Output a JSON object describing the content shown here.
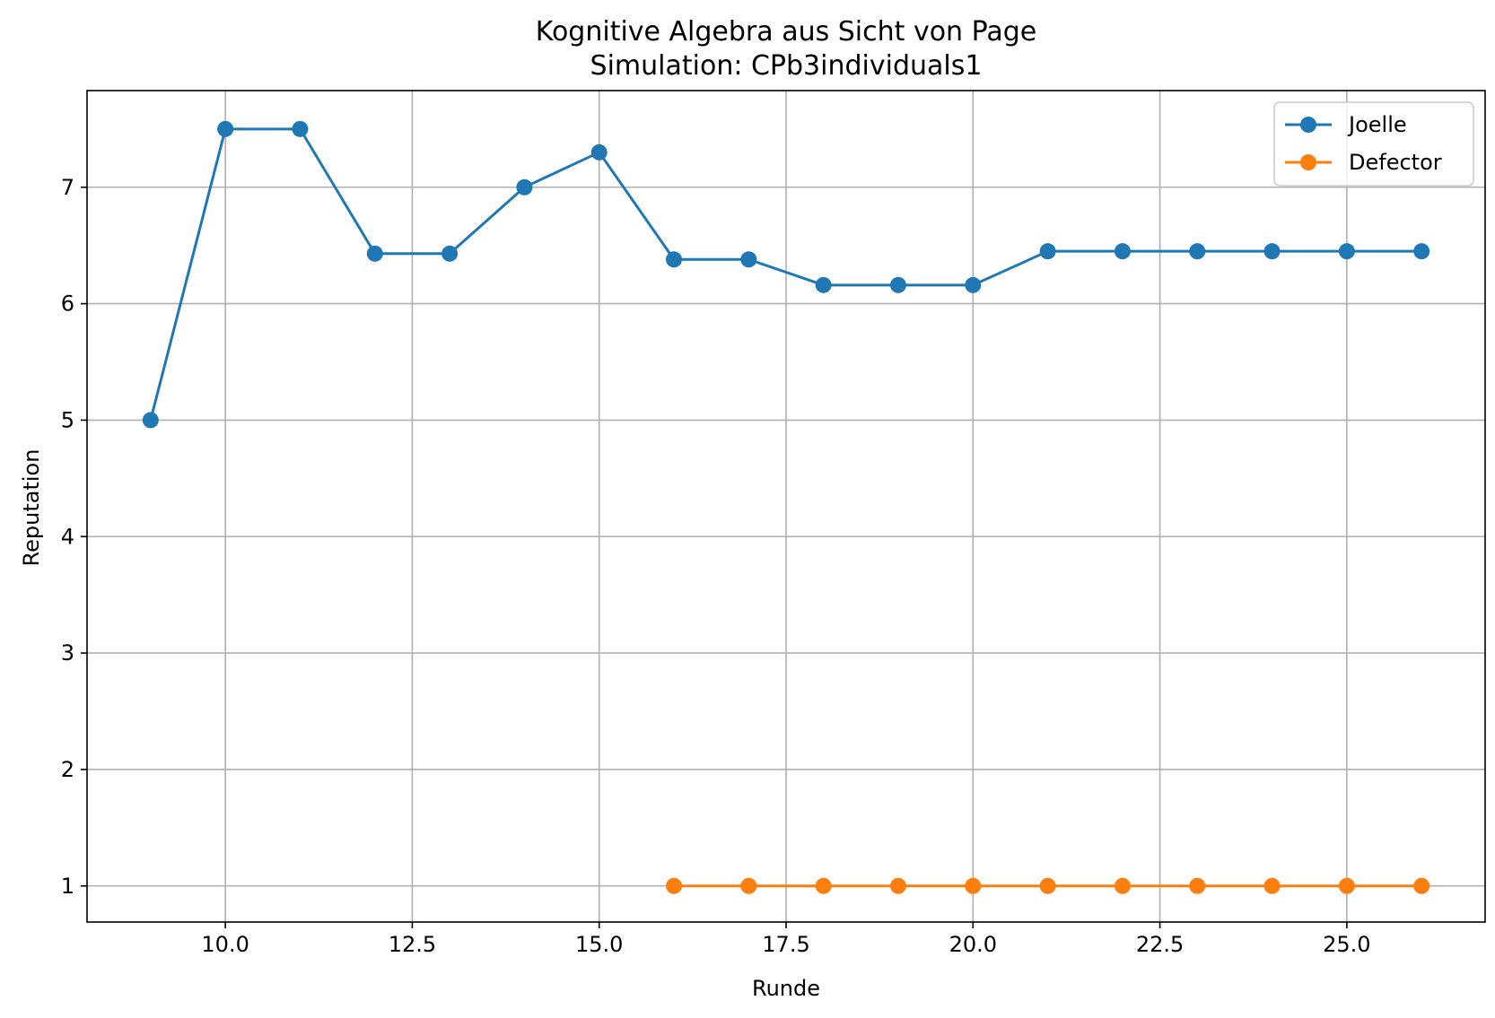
{
  "chart_data": {
    "type": "line",
    "title": "Kognitive Algebra aus Sicht von Page",
    "subtitle": "Simulation: CPb3individuals1",
    "xlabel": "Runde",
    "ylabel": "Reputation",
    "xlim": [
      8.15,
      26.85
    ],
    "ylim": [
      0.69,
      7.83
    ],
    "xticks": [
      10.0,
      12.5,
      15.0,
      17.5,
      20.0,
      22.5,
      25.0
    ],
    "xtick_labels": [
      "10.0",
      "12.5",
      "15.0",
      "17.5",
      "20.0",
      "22.5",
      "25.0"
    ],
    "yticks": [
      1,
      2,
      3,
      4,
      5,
      6,
      7
    ],
    "ytick_labels": [
      "1",
      "2",
      "3",
      "4",
      "5",
      "6",
      "7"
    ],
    "grid": true,
    "legend_position": "top-right",
    "series": [
      {
        "name": "Joelle",
        "color": "#1f77b4",
        "marker": "circle",
        "x": [
          9,
          10,
          11,
          12,
          13,
          14,
          15,
          16,
          17,
          18,
          19,
          20,
          21,
          22,
          23,
          24,
          25,
          26
        ],
        "y": [
          5.0,
          7.5,
          7.5,
          6.43,
          6.43,
          7.0,
          7.3,
          6.38,
          6.38,
          6.16,
          6.16,
          6.16,
          6.45,
          6.45,
          6.45,
          6.45,
          6.45,
          6.45
        ]
      },
      {
        "name": "Defector",
        "color": "#ff7f0e",
        "marker": "circle",
        "x": [
          16,
          17,
          18,
          19,
          20,
          21,
          22,
          23,
          24,
          25,
          26
        ],
        "y": [
          1,
          1,
          1,
          1,
          1,
          1,
          1,
          1,
          1,
          1,
          1
        ]
      }
    ]
  }
}
